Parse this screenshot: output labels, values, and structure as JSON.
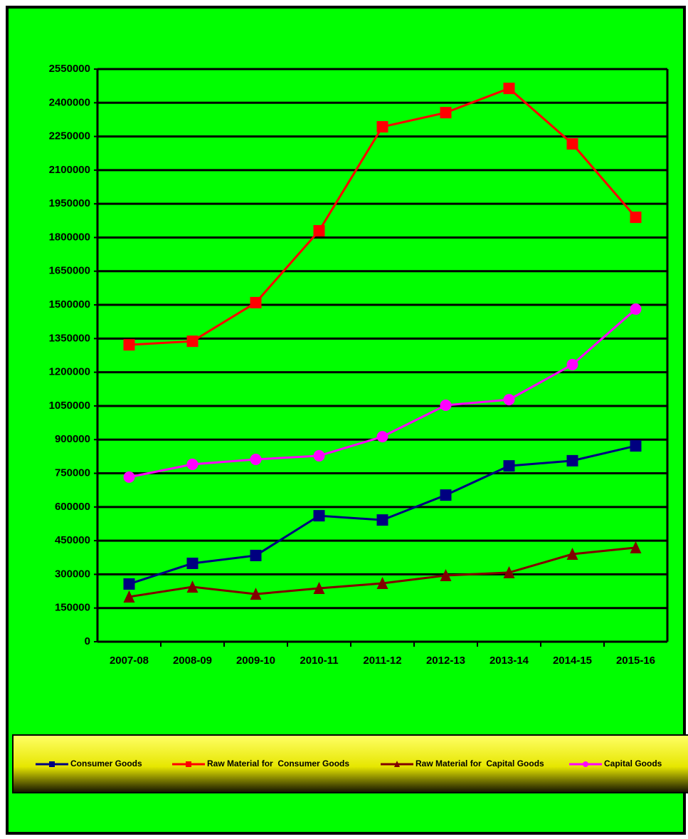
{
  "chart_data": {
    "type": "line",
    "categories": [
      "2007-08",
      "2008-09",
      "2009-10",
      "2010-11",
      "2011-12",
      "2012-13",
      "2013-14",
      "2014-15",
      "2015-16"
    ],
    "series": [
      {
        "name": "Consumer Goods",
        "color": "#000080",
        "marker": "square",
        "values": [
          257000,
          349000,
          384000,
          561000,
          542000,
          653000,
          783000,
          806000,
          872000
        ]
      },
      {
        "name": "Raw Material for  Consumer Goods",
        "color": "#ff0000",
        "marker": "square",
        "values": [
          1322000,
          1338000,
          1510000,
          1830000,
          2293000,
          2356000,
          2464000,
          2217000,
          1890000
        ]
      },
      {
        "name": "Raw Material for  Capital Goods",
        "color": "#800000",
        "marker": "triangle",
        "values": [
          200000,
          244000,
          212000,
          238000,
          260000,
          295000,
          308000,
          390000,
          419000
        ]
      },
      {
        "name": "Capital Goods",
        "color": "#ff00ff",
        "marker": "circle",
        "values": [
          733000,
          790000,
          812000,
          828000,
          913000,
          1053000,
          1078000,
          1234000,
          1481000
        ]
      }
    ],
    "ylim": [
      0,
      2550000
    ],
    "yticks": [
      0,
      150000,
      300000,
      450000,
      600000,
      750000,
      900000,
      1050000,
      1200000,
      1350000,
      1500000,
      1650000,
      1800000,
      1950000,
      2100000,
      2250000,
      2400000,
      2550000
    ],
    "grid": true,
    "legend": "bottom",
    "background": "#00ff00"
  }
}
